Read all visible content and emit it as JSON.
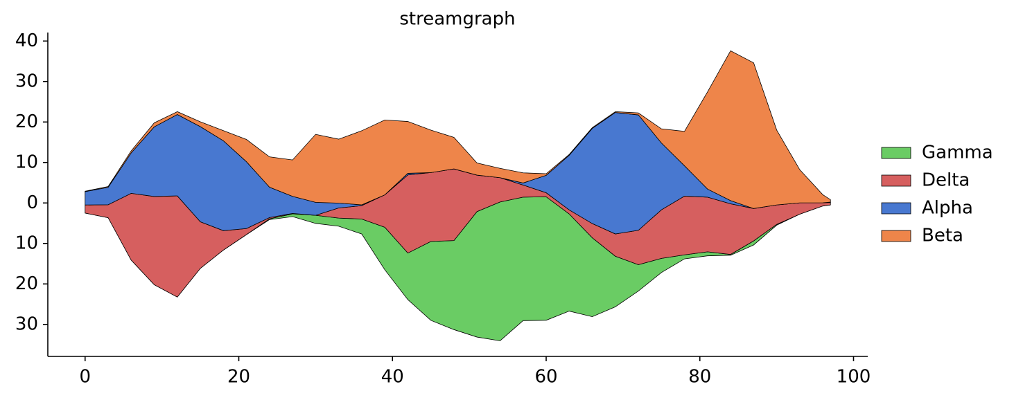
{
  "chart_data": {
    "type": "streamgraph",
    "title": "streamgraph",
    "baseline": "wiggle",
    "x": [
      0,
      3,
      6,
      9,
      12,
      15,
      18,
      21,
      24,
      27,
      30,
      33,
      36,
      39,
      42,
      45,
      48,
      51,
      54,
      57,
      60,
      63,
      66,
      69,
      72,
      75,
      78,
      81,
      84,
      87,
      90,
      93,
      96,
      97
    ],
    "series": [
      {
        "name": "Gamma",
        "color": "#6acc64",
        "values": [
          0,
          0,
          0,
          0,
          0,
          0,
          0,
          0,
          0.2,
          0.7,
          2,
          2,
          3.7,
          10.5,
          11.5,
          19.5,
          22,
          31,
          34.3,
          30.5,
          30.5,
          24,
          19.5,
          12.5,
          6.5,
          3.5,
          1,
          1,
          0.2,
          1,
          0.2,
          0,
          0,
          0
        ]
      },
      {
        "name": "Delta",
        "color": "#d65f5f",
        "values": [
          2,
          3.2,
          16.5,
          21.8,
          25,
          11.5,
          4.8,
          1.5,
          0.3,
          0.1,
          0,
          2.5,
          3.3,
          8,
          19.3,
          17,
          17.7,
          9,
          6,
          3,
          1,
          1,
          3.5,
          5.5,
          8.5,
          12,
          14.5,
          13.5,
          12.5,
          8,
          4.8,
          2.8,
          0.8,
          0.6
        ]
      },
      {
        "name": "Alpha",
        "color": "#4878d0",
        "values": [
          3.3,
          4.3,
          10,
          17.2,
          20.1,
          23.5,
          22.2,
          16.5,
          7.5,
          4.2,
          3.2,
          1.2,
          0.2,
          0,
          0.4,
          0,
          0,
          0,
          0,
          0.5,
          4.3,
          13.5,
          23.5,
          30,
          28.5,
          16.5,
          7.5,
          2,
          0.8,
          0,
          0,
          0,
          0,
          0.1
        ]
      },
      {
        "name": "Beta",
        "color": "#ee854a",
        "values": [
          0.1,
          0.2,
          0.5,
          1,
          0.7,
          1.2,
          2.5,
          5.5,
          7.5,
          9,
          16.8,
          15.8,
          18.3,
          18.5,
          12.8,
          10.5,
          7.8,
          3,
          2.3,
          2.5,
          0.4,
          0.2,
          0.2,
          0.2,
          0.5,
          3.5,
          8.5,
          24,
          37,
          36,
          18.5,
          8.2,
          2,
          0.6
        ]
      }
    ],
    "xlim": [
      -4.85,
      101.85
    ],
    "xticks": [
      0,
      20,
      40,
      60,
      80,
      100
    ],
    "ylim": [
      -37.9,
      42.1
    ],
    "yticks": [
      {
        "value": -30,
        "label": "30"
      },
      {
        "value": -20,
        "label": "20"
      },
      {
        "value": -10,
        "label": "10"
      },
      0,
      10,
      20,
      30,
      40
    ],
    "legend": "center right"
  }
}
